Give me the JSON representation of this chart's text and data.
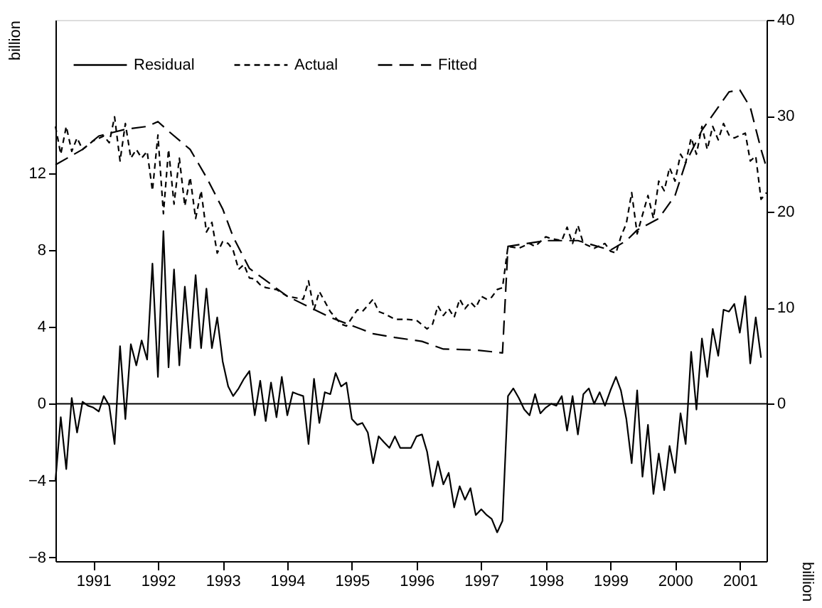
{
  "chart_data": {
    "type": "line",
    "ylabel": "billion",
    "y2label": "billion",
    "ylim": [
      -8.2,
      20
    ],
    "yticks": [
      -8,
      -4,
      0,
      4,
      8,
      12
    ],
    "y2lim": [
      -16.4,
      40
    ],
    "y2ticks": [
      0,
      10,
      20,
      30,
      40
    ],
    "xlim": [
      "1990-06",
      "2001-06"
    ],
    "xticks": [
      "1991",
      "1992",
      "1993",
      "1994",
      "1995",
      "1996",
      "1997",
      "1998",
      "1999",
      "2000",
      "2001"
    ],
    "grid": false,
    "legend": "top left",
    "marker": "none",
    "ref_lines": [
      {
        "axis": "y",
        "value": 0,
        "color": "#000000",
        "line_style": "solid"
      }
    ],
    "series": [
      {
        "name": "Residual",
        "color": "#000000",
        "line_style": "solid",
        "x": [
          "1990-06",
          "1990-07",
          "1990-08",
          "1990-09",
          "1990-10",
          "1990-11",
          "1990-12",
          "1991-01",
          "1991-02",
          "1991-03",
          "1991-04",
          "1991-05",
          "1991-06",
          "1991-07",
          "1991-08",
          "1991-09",
          "1991-10",
          "1991-11",
          "1991-12",
          "1992-01",
          "1992-02",
          "1992-03",
          "1992-04",
          "1992-05",
          "1992-06",
          "1992-07",
          "1992-08",
          "1992-09",
          "1992-10",
          "1992-11",
          "1992-12",
          "1993-01",
          "1993-02",
          "1993-03",
          "1993-04",
          "1993-05",
          "1993-06",
          "1993-07",
          "1993-08",
          "1993-09",
          "1993-10",
          "1993-11",
          "1993-12",
          "1994-01",
          "1994-02",
          "1994-03",
          "1994-04",
          "1994-05",
          "1994-06",
          "1994-07",
          "1994-08",
          "1994-09",
          "1994-10",
          "1994-11",
          "1994-12",
          "1995-01",
          "1995-02",
          "1995-03",
          "1995-04",
          "1995-05",
          "1995-06",
          "1995-07",
          "1995-08",
          "1995-09",
          "1995-10",
          "1995-11",
          "1995-12",
          "1996-01",
          "1996-02",
          "1996-03",
          "1996-04",
          "1996-05",
          "1996-06",
          "1996-07",
          "1996-08",
          "1996-09",
          "1996-10",
          "1996-11",
          "1996-12",
          "1997-01",
          "1997-02",
          "1997-03",
          "1997-04",
          "1997-05",
          "1997-06",
          "1997-07",
          "1997-08",
          "1997-09",
          "1997-10",
          "1997-11",
          "1997-12",
          "1998-01",
          "1998-02",
          "1998-03",
          "1998-04",
          "1998-05",
          "1998-06",
          "1998-07",
          "1998-08",
          "1998-09",
          "1998-10",
          "1998-11",
          "1998-12",
          "1999-01",
          "1999-02",
          "1999-03",
          "1999-04",
          "1999-05",
          "1999-06",
          "1999-07",
          "1999-08",
          "1999-09",
          "1999-10",
          "1999-11",
          "1999-12",
          "2000-01",
          "2000-02",
          "2000-03",
          "2000-04",
          "2000-05",
          "2000-06",
          "2000-07",
          "2000-08",
          "2000-09",
          "2000-10",
          "2000-11",
          "2000-12",
          "2001-01",
          "2001-02",
          "2001-03",
          "2001-04",
          "2001-05"
        ],
        "values": [
          -4.0,
          -0.7,
          -3.4,
          0.3,
          -1.5,
          0.1,
          -0.1,
          -0.2,
          -0.4,
          0.4,
          -0.1,
          -2.1,
          3.0,
          -0.8,
          3.1,
          2.0,
          3.3,
          2.3,
          7.3,
          1.4,
          9.0,
          1.9,
          7.0,
          2.0,
          6.1,
          2.9,
          6.7,
          2.9,
          6.0,
          2.9,
          4.5,
          2.2,
          0.9,
          0.4,
          0.8,
          1.3,
          1.7,
          -0.6,
          1.2,
          -0.9,
          1.1,
          -0.7,
          1.4,
          -0.6,
          0.6,
          0.5,
          0.4,
          -2.1,
          1.3,
          -1.0,
          0.6,
          0.5,
          1.6,
          0.9,
          1.1,
          -0.8,
          -1.1,
          -1.0,
          -1.5,
          -3.1,
          -1.7,
          -2.0,
          -2.3,
          -1.7,
          -2.3,
          -2.3,
          -2.3,
          -1.7,
          -1.6,
          -2.5,
          -4.3,
          -3.0,
          -4.2,
          -3.6,
          -5.4,
          -4.3,
          -5.0,
          -4.4,
          -5.8,
          -5.5,
          -5.8,
          -6.0,
          -6.7,
          -6.1,
          0.4,
          0.8,
          0.3,
          -0.3,
          -0.6,
          0.5,
          -0.5,
          -0.2,
          0.0,
          -0.1,
          0.4,
          -1.4,
          0.4,
          -1.6,
          0.5,
          0.8,
          0.0,
          0.6,
          -0.1,
          0.7,
          1.4,
          0.7,
          -0.8,
          -3.1,
          0.7,
          -3.8,
          -1.1,
          -4.7,
          -2.6,
          -4.5,
          -2.2,
          -3.6,
          -0.5,
          -2.1,
          2.7,
          -0.3,
          3.4,
          1.4,
          3.9,
          2.5,
          4.9,
          4.8,
          5.2,
          3.7,
          5.6,
          2.1,
          4.5,
          2.4
        ]
      },
      {
        "name": "Actual",
        "color": "#000000",
        "line_style": "dashed",
        "axis": "y2",
        "x": [
          "1990-06",
          "1990-07",
          "1990-08",
          "1990-09",
          "1990-10",
          "1990-11",
          "1991-01",
          "1991-03",
          "1991-04",
          "1991-05",
          "1991-06",
          "1991-07",
          "1991-08",
          "1991-09",
          "1991-10",
          "1991-11",
          "1991-12",
          "1992-01",
          "1992-02",
          "1992-03",
          "1992-04",
          "1992-05",
          "1992-06",
          "1992-07",
          "1992-08",
          "1992-09",
          "1992-10",
          "1992-11",
          "1992-12",
          "1993-01",
          "1993-02",
          "1993-03",
          "1993-04",
          "1993-05",
          "1993-06",
          "1993-07",
          "1993-08",
          "1993-09",
          "1993-11",
          "1994-01",
          "1994-03",
          "1994-04",
          "1994-05",
          "1994-06",
          "1994-07",
          "1994-09",
          "1994-11",
          "1994-12",
          "1995-02",
          "1995-03",
          "1995-05",
          "1995-06",
          "1995-07",
          "1995-09",
          "1995-11",
          "1996-01",
          "1996-03",
          "1996-04",
          "1996-05",
          "1996-06",
          "1996-07",
          "1996-08",
          "1996-09",
          "1996-10",
          "1996-11",
          "1996-12",
          "1997-01",
          "1997-02",
          "1997-03",
          "1997-04",
          "1997-05",
          "1997-06",
          "1997-08",
          "1997-10",
          "1997-11",
          "1998-01",
          "1998-02",
          "1998-04",
          "1998-05",
          "1998-06",
          "1998-07",
          "1998-08",
          "1998-10",
          "1998-12",
          "1999-01",
          "1999-02",
          "1999-03",
          "1999-04",
          "1999-05",
          "1999-06",
          "1999-08",
          "1999-09",
          "1999-10",
          "1999-11",
          "1999-12",
          "2000-01",
          "2000-02",
          "2000-03",
          "2000-04",
          "2000-05",
          "2000-06",
          "2000-07",
          "2000-08",
          "2000-09",
          "2000-10",
          "2000-11",
          "2000-12",
          "2001-02",
          "2001-03",
          "2001-04",
          "2001-05",
          "2001-06"
        ],
        "values": [
          28.9,
          26.0,
          28.9,
          26.3,
          27.7,
          26.5,
          27.4,
          27.9,
          27.2,
          29.9,
          25.3,
          29.2,
          25.6,
          26.5,
          25.6,
          26.3,
          22.2,
          28.0,
          19.8,
          26.5,
          20.8,
          25.6,
          20.6,
          23.6,
          19.3,
          22.2,
          17.9,
          18.9,
          15.7,
          16.9,
          16.7,
          16.0,
          14.0,
          14.5,
          13.1,
          13.0,
          12.4,
          12.1,
          11.9,
          11.2,
          11.0,
          10.9,
          12.8,
          9.8,
          11.7,
          9.6,
          8.3,
          8.1,
          9.8,
          9.6,
          10.9,
          9.6,
          9.4,
          8.8,
          8.8,
          8.7,
          7.8,
          8.3,
          10.2,
          9.2,
          9.9,
          9.0,
          10.9,
          9.9,
          10.6,
          10.0,
          11.2,
          10.9,
          11.1,
          11.9,
          12.1,
          16.4,
          16.2,
          16.7,
          16.4,
          17.4,
          17.2,
          17.0,
          18.4,
          16.7,
          18.6,
          16.7,
          16.2,
          16.7,
          15.9,
          15.7,
          17.4,
          18.8,
          22.0,
          17.7,
          21.7,
          19.3,
          23.2,
          22.2,
          24.6,
          23.2,
          26.0,
          25.1,
          27.7,
          26.0,
          28.9,
          26.5,
          28.9,
          27.5,
          29.2,
          28.0,
          27.7,
          28.2,
          25.3,
          25.8,
          21.3,
          22.0
        ]
      },
      {
        "name": "Fitted",
        "color": "#000000",
        "line_style": "dashed",
        "axis": "y2",
        "x": [
          "1990-06",
          "1990-11",
          "1991-02",
          "1991-07",
          "1991-11",
          "1992-01",
          "1992-03",
          "1992-07",
          "1992-10",
          "1993-01",
          "1993-03",
          "1993-06",
          "1994-01",
          "1994-09",
          "1995-05",
          "1995-09",
          "1996-02",
          "1996-06",
          "1996-12",
          "1997-05",
          "1997-06",
          "1998-01",
          "1998-07",
          "1999-01",
          "1999-04",
          "1999-06",
          "1999-10",
          "2000-01",
          "2000-03",
          "2000-06",
          "2000-09",
          "2000-11",
          "2001-01",
          "2001-03",
          "2001-05",
          "2001-06"
        ],
        "values": [
          24.9,
          26.5,
          27.9,
          28.6,
          28.9,
          29.4,
          28.4,
          26.5,
          23.6,
          20.3,
          17.4,
          14.1,
          11.2,
          9.0,
          7.3,
          6.9,
          6.5,
          5.7,
          5.6,
          5.3,
          16.4,
          17.0,
          17.0,
          16.0,
          17.0,
          18.1,
          19.3,
          21.7,
          25.1,
          28.5,
          30.9,
          32.5,
          32.7,
          30.9,
          26.5,
          24.6
        ]
      }
    ]
  }
}
